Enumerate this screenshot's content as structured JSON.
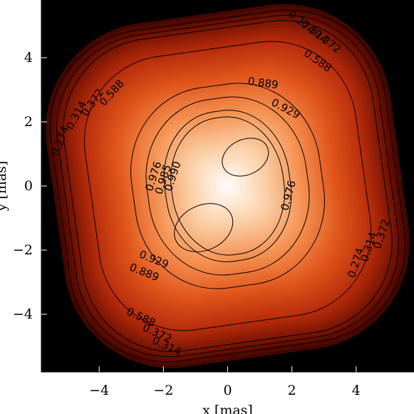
{
  "chart_data": {
    "type": "heatmap",
    "title": "",
    "xlabel": "x [mas]",
    "ylabel": "y [mas]",
    "xlim": [
      -5.8,
      5.8
    ],
    "ylim": [
      -5.8,
      5.8
    ],
    "x_ticks": [
      -4,
      -2,
      0,
      2,
      4
    ],
    "y_ticks": [
      -4,
      -2,
      0,
      2,
      4
    ],
    "x_tick_labels": [
      "−4",
      "−2",
      "0",
      "2",
      "4"
    ],
    "y_tick_labels": [
      "−4",
      "−2",
      "0",
      "2",
      "4"
    ],
    "grid": false,
    "colormap": [
      "#000000",
      "#5a0a00",
      "#b42a0a",
      "#e0541a",
      "#f49050",
      "#fbd0a8",
      "#ffffff"
    ],
    "contour_levels": [
      "0.274",
      "0.314",
      "0.372",
      "0.588",
      "0.889",
      "0.929",
      "0.976",
      "0.985",
      "0.990"
    ],
    "contour_labels": [
      {
        "text": "0.889",
        "x": 1.1,
        "y": 3.2,
        "angle": 8
      },
      {
        "text": "0.929",
        "x": 1.8,
        "y": 2.4,
        "angle": 28
      },
      {
        "text": "0.588",
        "x": -3.6,
        "y": 2.9,
        "angle": -48
      },
      {
        "text": "0.588",
        "x": 2.8,
        "y": 3.9,
        "angle": 35
      },
      {
        "text": "0.372",
        "x": -4.2,
        "y": 2.6,
        "angle": -55
      },
      {
        "text": "0.314",
        "x": -4.7,
        "y": 2.2,
        "angle": -62
      },
      {
        "text": "0.274",
        "x": -5.2,
        "y": 1.4,
        "angle": -70
      },
      {
        "text": "0.372",
        "x": 3.1,
        "y": 4.5,
        "angle": 38
      },
      {
        "text": "0.314",
        "x": 2.7,
        "y": 4.8,
        "angle": 38
      },
      {
        "text": "0.274",
        "x": 2.3,
        "y": 5.1,
        "angle": 38
      },
      {
        "text": "0.976",
        "x": -2.3,
        "y": 0.3,
        "angle": -72
      },
      {
        "text": "0.985",
        "x": -2.0,
        "y": 0.2,
        "angle": -72
      },
      {
        "text": "0.990",
        "x": -1.7,
        "y": 0.3,
        "angle": -72
      },
      {
        "text": "0.976",
        "x": 1.9,
        "y": -0.3,
        "angle": -75
      },
      {
        "text": "0.929",
        "x": -2.3,
        "y": -2.3,
        "angle": 22
      },
      {
        "text": "0.889",
        "x": -2.6,
        "y": -2.7,
        "angle": 22
      },
      {
        "text": "0.588",
        "x": -2.7,
        "y": -4.1,
        "angle": 25
      },
      {
        "text": "0.372",
        "x": -2.2,
        "y": -4.6,
        "angle": 25
      },
      {
        "text": "0.314",
        "x": -1.9,
        "y": -5.0,
        "angle": 25
      },
      {
        "text": "0.274",
        "x": 4.0,
        "y": -2.4,
        "angle": -72
      },
      {
        "text": "0.314",
        "x": 4.4,
        "y": -1.9,
        "angle": -72
      },
      {
        "text": "0.372",
        "x": 4.8,
        "y": -1.5,
        "angle": -72
      }
    ]
  }
}
